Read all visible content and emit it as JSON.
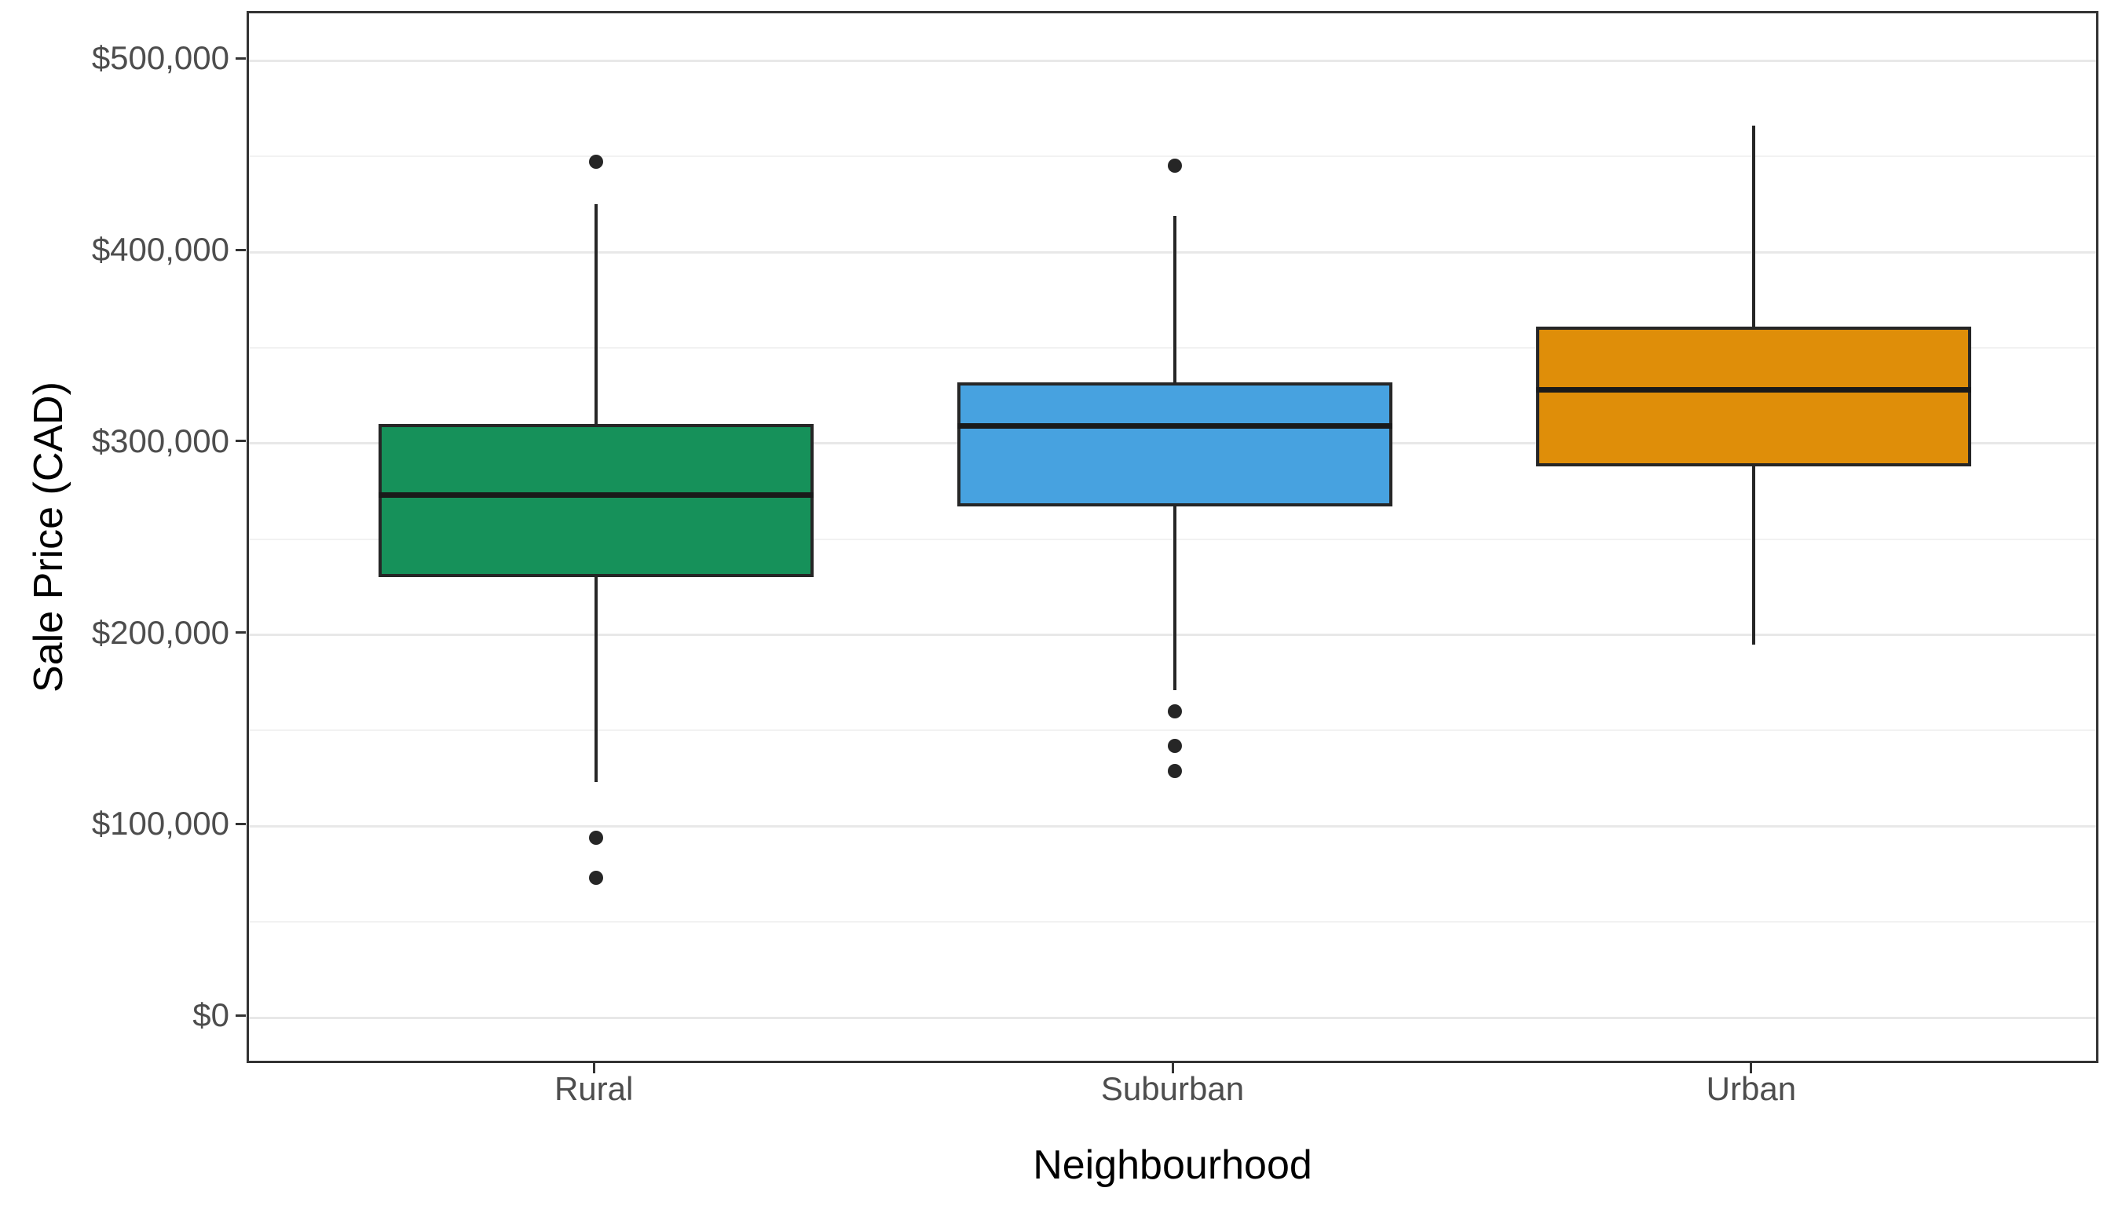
{
  "chart_data": {
    "type": "boxplot",
    "title": "",
    "xlabel": "Neighbourhood",
    "ylabel": "Sale Price (CAD)",
    "categories": [
      "Rural",
      "Suburban",
      "Urban"
    ],
    "ylim": [
      0,
      500000
    ],
    "grid": "horizontal major + minor, light gray on white",
    "legend": "none",
    "y_ticks": [
      {
        "value": 0,
        "label": "$0"
      },
      {
        "value": 100000,
        "label": "$100,000"
      },
      {
        "value": 200000,
        "label": "$200,000"
      },
      {
        "value": 300000,
        "label": "$300,000"
      },
      {
        "value": 400000,
        "label": "$400,000"
      },
      {
        "value": 500000,
        "label": "$500,000"
      }
    ],
    "y_minor_ticks": [
      50000,
      150000,
      250000,
      350000,
      450000
    ],
    "series": [
      {
        "name": "Rural",
        "fill": "#16915A",
        "whisker_low": 123000,
        "q1": 230000,
        "median": 273000,
        "q3": 310000,
        "whisker_high": 425000,
        "outliers": [
          447000,
          94000,
          73000
        ]
      },
      {
        "name": "Suburban",
        "fill": "#47A2E0",
        "whisker_low": 171000,
        "q1": 267000,
        "median": 309000,
        "q3": 332000,
        "whisker_high": 419000,
        "outliers": [
          445000,
          160000,
          142000,
          129000
        ]
      },
      {
        "name": "Urban",
        "fill": "#DF8E09",
        "whisker_low": 195000,
        "q1": 288000,
        "median": 328000,
        "q3": 361000,
        "whisker_high": 466000,
        "outliers": []
      }
    ],
    "style_colors": {
      "axis_text": "#4D4D4D",
      "axis_title": "#000000",
      "panel_border": "#333333",
      "gridline_major": "#E8E8E8",
      "gridline_minor": "#F2F2F2",
      "box_border": "#262626",
      "median_line": "#1A1A1A",
      "outlier_dot": "#262626",
      "background": "#FFFFFF"
    }
  }
}
